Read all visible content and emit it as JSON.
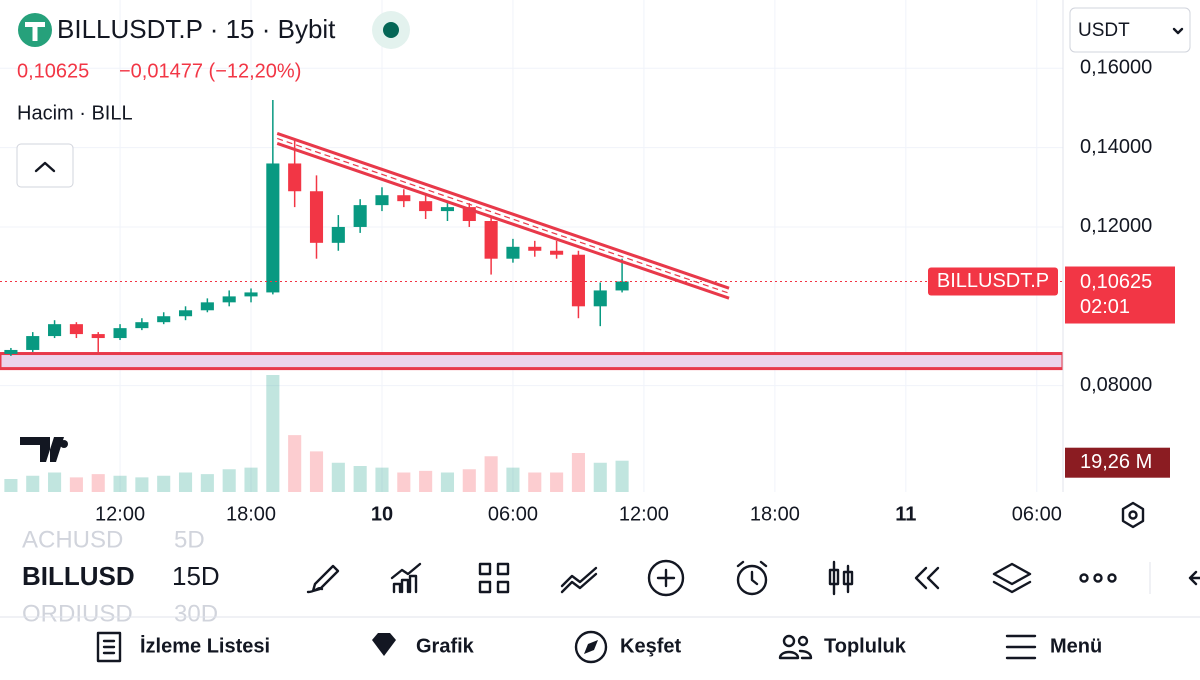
{
  "header": {
    "title": "BILLUSDT.P · 15 · Bybit",
    "price": "0,10625",
    "change": "−0,01477 (−12,20%)",
    "volume_title": "Hacim · BILL",
    "currency": "USDT"
  },
  "chart_data": {
    "type": "candlestick",
    "x": [
      7,
      8,
      9,
      10,
      11,
      12,
      13,
      14,
      15,
      16,
      17,
      18,
      19,
      20,
      21,
      22,
      23,
      24,
      25,
      26,
      27,
      28,
      29,
      30,
      31,
      32,
      33,
      34,
      35
    ],
    "open": [
      0.088,
      0.089,
      0.0925,
      0.0955,
      0.093,
      0.092,
      0.0945,
      0.096,
      0.0975,
      0.099,
      0.101,
      0.1025,
      0.1035,
      0.136,
      0.129,
      0.116,
      0.12,
      0.1255,
      0.128,
      0.1265,
      0.124,
      0.125,
      0.1215,
      0.112,
      0.115,
      0.114,
      0.113,
      0.1,
      0.104
    ],
    "high": [
      0.0895,
      0.0935,
      0.0965,
      0.096,
      0.0935,
      0.0955,
      0.097,
      0.0985,
      0.1,
      0.102,
      0.104,
      0.1045,
      0.152,
      0.142,
      0.133,
      0.123,
      0.127,
      0.13,
      0.1295,
      0.128,
      0.1265,
      0.126,
      0.1225,
      0.117,
      0.1165,
      0.1165,
      0.114,
      0.106,
      0.112
    ],
    "low": [
      0.0875,
      0.0885,
      0.092,
      0.092,
      0.0885,
      0.0915,
      0.094,
      0.0955,
      0.0965,
      0.0985,
      0.1,
      0.101,
      0.103,
      0.125,
      0.112,
      0.114,
      0.1185,
      0.124,
      0.125,
      0.122,
      0.1215,
      0.12,
      0.108,
      0.111,
      0.1125,
      0.112,
      0.097,
      0.095,
      0.1035
    ],
    "close": [
      0.089,
      0.0925,
      0.0955,
      0.093,
      0.092,
      0.0945,
      0.096,
      0.0975,
      0.099,
      0.101,
      0.1025,
      0.1035,
      0.136,
      0.129,
      0.116,
      0.12,
      0.1255,
      0.128,
      0.1265,
      0.124,
      0.125,
      0.1215,
      0.112,
      0.115,
      0.114,
      0.113,
      0.1,
      0.104,
      0.10625
    ],
    "volume": [
      8,
      10,
      12,
      9,
      11,
      10,
      9,
      10,
      12,
      11,
      14,
      15,
      72,
      35,
      25,
      18,
      16,
      15,
      12,
      13,
      12,
      14,
      22,
      15,
      12,
      12,
      24,
      18,
      19.26
    ],
    "up_color": "#089981",
    "down_color": "#f23645",
    "xlim": [
      6.5,
      55.2
    ],
    "ylim": [
      0.0532,
      0.1772
    ],
    "volume_lim": [
      0,
      80
    ],
    "xticks": [
      {
        "value": 12,
        "label": "12:00"
      },
      {
        "value": 18,
        "label": "18:00"
      },
      {
        "value": 24,
        "label": "10"
      },
      {
        "value": 30,
        "label": "06:00"
      },
      {
        "value": 36,
        "label": "12:00"
      },
      {
        "value": 42,
        "label": "18:00"
      },
      {
        "value": 48,
        "label": "11"
      },
      {
        "value": 54,
        "label": "06:00"
      }
    ],
    "yticks": [
      {
        "value": 0.08,
        "label": "0,08000"
      },
      {
        "value": 0.12,
        "label": "0,12000"
      },
      {
        "value": 0.14,
        "label": "0,14000"
      },
      {
        "value": 0.16,
        "label": "0,16000"
      }
    ],
    "grid": true,
    "last_price": {
      "value": 0.10625,
      "label": "0,10625"
    },
    "countdown": "02:01",
    "symbol_tag": "BILLUSDT.P",
    "volume_label": {
      "value": 19.26,
      "label": "19,26 M"
    },
    "trendline": {
      "x": [
        19.2,
        39.9
      ],
      "y": [
        0.1423,
        0.1033
      ],
      "color": "#e8394a"
    },
    "zone": {
      "low": 0.0843,
      "high": 0.0881,
      "color": "#e8394a",
      "fill": "#ecd3ea"
    }
  },
  "toolbar": {
    "symbol": "BILLUSD",
    "interval": "15D",
    "prev_symbol": "ACHUSD",
    "prev_interval": "5D",
    "next_symbol": "ORDIUSD",
    "next_interval": "30D"
  },
  "nav": [
    "İzleme Listesi",
    "Grafik",
    "Keşfet",
    "Topluluk",
    "Menü"
  ]
}
